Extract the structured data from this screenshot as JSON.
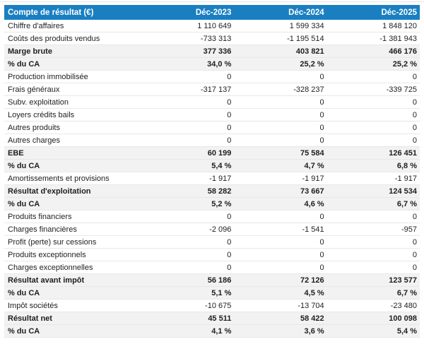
{
  "colors": {
    "header_bg": "#1A7FC1",
    "header_text": "#FFFFFF",
    "summary_row_bg": "#F2F2F2",
    "row_border": "#E8E8E8",
    "text": "#1E1E1E"
  },
  "table": {
    "header": {
      "label": "Compte de résultat (€)",
      "columns": [
        "Déc-2023",
        "Déc-2024",
        "Déc-2025"
      ]
    },
    "rows": [
      {
        "label": "Chiffre d'affaires",
        "values": [
          "1 110 649",
          "1 599 334",
          "1 848 120"
        ],
        "bold": false
      },
      {
        "label": "Coûts des produits vendus",
        "values": [
          "-733 313",
          "-1 195 514",
          "-1 381 943"
        ],
        "bold": false
      },
      {
        "label": "Marge brute",
        "values": [
          "377 336",
          "403 821",
          "466 176"
        ],
        "bold": true
      },
      {
        "label": "% du CA",
        "values": [
          "34,0 %",
          "25,2 %",
          "25,2 %"
        ],
        "bold": true
      },
      {
        "label": "Production immobilisée",
        "values": [
          "0",
          "0",
          "0"
        ],
        "bold": false
      },
      {
        "label": "Frais généraux",
        "values": [
          "-317 137",
          "-328 237",
          "-339 725"
        ],
        "bold": false
      },
      {
        "label": "Subv. exploitation",
        "values": [
          "0",
          "0",
          "0"
        ],
        "bold": false
      },
      {
        "label": "Loyers crédits bails",
        "values": [
          "0",
          "0",
          "0"
        ],
        "bold": false
      },
      {
        "label": "Autres produits",
        "values": [
          "0",
          "0",
          "0"
        ],
        "bold": false
      },
      {
        "label": "Autres charges",
        "values": [
          "0",
          "0",
          "0"
        ],
        "bold": false
      },
      {
        "label": "EBE",
        "values": [
          "60 199",
          "75 584",
          "126 451"
        ],
        "bold": true
      },
      {
        "label": "% du CA",
        "values": [
          "5,4 %",
          "4,7 %",
          "6,8 %"
        ],
        "bold": true
      },
      {
        "label": "Amortissements et provisions",
        "values": [
          "-1 917",
          "-1 917",
          "-1 917"
        ],
        "bold": false
      },
      {
        "label": "Résultat d'exploitation",
        "values": [
          "58 282",
          "73 667",
          "124 534"
        ],
        "bold": true
      },
      {
        "label": "% du CA",
        "values": [
          "5,2 %",
          "4,6 %",
          "6,7 %"
        ],
        "bold": true
      },
      {
        "label": "Produits financiers",
        "values": [
          "0",
          "0",
          "0"
        ],
        "bold": false
      },
      {
        "label": "Charges financières",
        "values": [
          "-2 096",
          "-1 541",
          "-957"
        ],
        "bold": false
      },
      {
        "label": "Profit (perte) sur cessions",
        "values": [
          "0",
          "0",
          "0"
        ],
        "bold": false
      },
      {
        "label": "Produits exceptionnels",
        "values": [
          "0",
          "0",
          "0"
        ],
        "bold": false
      },
      {
        "label": "Charges exceptionnelles",
        "values": [
          "0",
          "0",
          "0"
        ],
        "bold": false
      },
      {
        "label": "Résultat avant impôt",
        "values": [
          "56 186",
          "72 126",
          "123 577"
        ],
        "bold": true
      },
      {
        "label": "% du CA",
        "values": [
          "5,1 %",
          "4,5 %",
          "6,7 %"
        ],
        "bold": true
      },
      {
        "label": "Impôt sociétés",
        "values": [
          "-10 675",
          "-13 704",
          "-23 480"
        ],
        "bold": false
      },
      {
        "label": "Résultat net",
        "values": [
          "45 511",
          "58 422",
          "100 098"
        ],
        "bold": true
      },
      {
        "label": "% du CA",
        "values": [
          "4,1 %",
          "3,6 %",
          "5,4 %"
        ],
        "bold": true
      }
    ]
  }
}
